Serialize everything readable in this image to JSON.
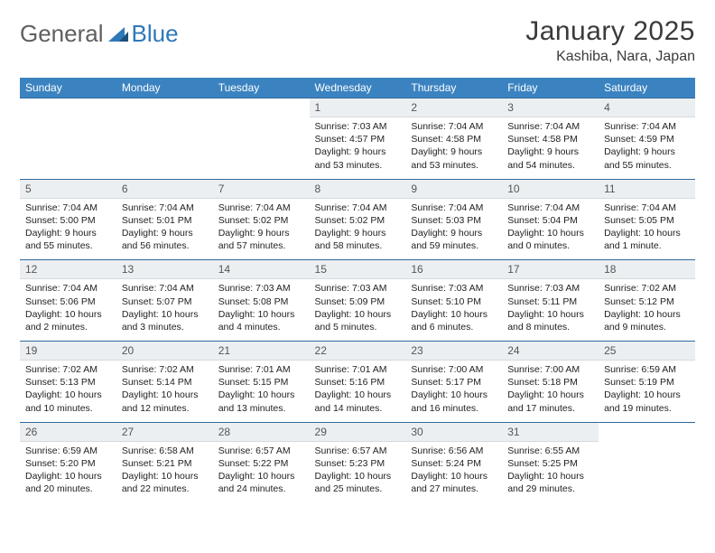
{
  "brand": {
    "part1": "General",
    "part2": "Blue"
  },
  "title": "January 2025",
  "location": "Kashiba, Nara, Japan",
  "colors": {
    "header_bg": "#3b83c0",
    "header_fg": "#ffffff",
    "daynum_bg": "#eceff1",
    "row_border": "#2f6aa0"
  },
  "weekdays": [
    "Sunday",
    "Monday",
    "Tuesday",
    "Wednesday",
    "Thursday",
    "Friday",
    "Saturday"
  ],
  "weeks": [
    [
      {
        "day": "",
        "sunrise": "",
        "sunset": "",
        "daylight": ""
      },
      {
        "day": "",
        "sunrise": "",
        "sunset": "",
        "daylight": ""
      },
      {
        "day": "",
        "sunrise": "",
        "sunset": "",
        "daylight": ""
      },
      {
        "day": "1",
        "sunrise": "Sunrise: 7:03 AM",
        "sunset": "Sunset: 4:57 PM",
        "daylight": "Daylight: 9 hours and 53 minutes."
      },
      {
        "day": "2",
        "sunrise": "Sunrise: 7:04 AM",
        "sunset": "Sunset: 4:58 PM",
        "daylight": "Daylight: 9 hours and 53 minutes."
      },
      {
        "day": "3",
        "sunrise": "Sunrise: 7:04 AM",
        "sunset": "Sunset: 4:58 PM",
        "daylight": "Daylight: 9 hours and 54 minutes."
      },
      {
        "day": "4",
        "sunrise": "Sunrise: 7:04 AM",
        "sunset": "Sunset: 4:59 PM",
        "daylight": "Daylight: 9 hours and 55 minutes."
      }
    ],
    [
      {
        "day": "5",
        "sunrise": "Sunrise: 7:04 AM",
        "sunset": "Sunset: 5:00 PM",
        "daylight": "Daylight: 9 hours and 55 minutes."
      },
      {
        "day": "6",
        "sunrise": "Sunrise: 7:04 AM",
        "sunset": "Sunset: 5:01 PM",
        "daylight": "Daylight: 9 hours and 56 minutes."
      },
      {
        "day": "7",
        "sunrise": "Sunrise: 7:04 AM",
        "sunset": "Sunset: 5:02 PM",
        "daylight": "Daylight: 9 hours and 57 minutes."
      },
      {
        "day": "8",
        "sunrise": "Sunrise: 7:04 AM",
        "sunset": "Sunset: 5:02 PM",
        "daylight": "Daylight: 9 hours and 58 minutes."
      },
      {
        "day": "9",
        "sunrise": "Sunrise: 7:04 AM",
        "sunset": "Sunset: 5:03 PM",
        "daylight": "Daylight: 9 hours and 59 minutes."
      },
      {
        "day": "10",
        "sunrise": "Sunrise: 7:04 AM",
        "sunset": "Sunset: 5:04 PM",
        "daylight": "Daylight: 10 hours and 0 minutes."
      },
      {
        "day": "11",
        "sunrise": "Sunrise: 7:04 AM",
        "sunset": "Sunset: 5:05 PM",
        "daylight": "Daylight: 10 hours and 1 minute."
      }
    ],
    [
      {
        "day": "12",
        "sunrise": "Sunrise: 7:04 AM",
        "sunset": "Sunset: 5:06 PM",
        "daylight": "Daylight: 10 hours and 2 minutes."
      },
      {
        "day": "13",
        "sunrise": "Sunrise: 7:04 AM",
        "sunset": "Sunset: 5:07 PM",
        "daylight": "Daylight: 10 hours and 3 minutes."
      },
      {
        "day": "14",
        "sunrise": "Sunrise: 7:03 AM",
        "sunset": "Sunset: 5:08 PM",
        "daylight": "Daylight: 10 hours and 4 minutes."
      },
      {
        "day": "15",
        "sunrise": "Sunrise: 7:03 AM",
        "sunset": "Sunset: 5:09 PM",
        "daylight": "Daylight: 10 hours and 5 minutes."
      },
      {
        "day": "16",
        "sunrise": "Sunrise: 7:03 AM",
        "sunset": "Sunset: 5:10 PM",
        "daylight": "Daylight: 10 hours and 6 minutes."
      },
      {
        "day": "17",
        "sunrise": "Sunrise: 7:03 AM",
        "sunset": "Sunset: 5:11 PM",
        "daylight": "Daylight: 10 hours and 8 minutes."
      },
      {
        "day": "18",
        "sunrise": "Sunrise: 7:02 AM",
        "sunset": "Sunset: 5:12 PM",
        "daylight": "Daylight: 10 hours and 9 minutes."
      }
    ],
    [
      {
        "day": "19",
        "sunrise": "Sunrise: 7:02 AM",
        "sunset": "Sunset: 5:13 PM",
        "daylight": "Daylight: 10 hours and 10 minutes."
      },
      {
        "day": "20",
        "sunrise": "Sunrise: 7:02 AM",
        "sunset": "Sunset: 5:14 PM",
        "daylight": "Daylight: 10 hours and 12 minutes."
      },
      {
        "day": "21",
        "sunrise": "Sunrise: 7:01 AM",
        "sunset": "Sunset: 5:15 PM",
        "daylight": "Daylight: 10 hours and 13 minutes."
      },
      {
        "day": "22",
        "sunrise": "Sunrise: 7:01 AM",
        "sunset": "Sunset: 5:16 PM",
        "daylight": "Daylight: 10 hours and 14 minutes."
      },
      {
        "day": "23",
        "sunrise": "Sunrise: 7:00 AM",
        "sunset": "Sunset: 5:17 PM",
        "daylight": "Daylight: 10 hours and 16 minutes."
      },
      {
        "day": "24",
        "sunrise": "Sunrise: 7:00 AM",
        "sunset": "Sunset: 5:18 PM",
        "daylight": "Daylight: 10 hours and 17 minutes."
      },
      {
        "day": "25",
        "sunrise": "Sunrise: 6:59 AM",
        "sunset": "Sunset: 5:19 PM",
        "daylight": "Daylight: 10 hours and 19 minutes."
      }
    ],
    [
      {
        "day": "26",
        "sunrise": "Sunrise: 6:59 AM",
        "sunset": "Sunset: 5:20 PM",
        "daylight": "Daylight: 10 hours and 20 minutes."
      },
      {
        "day": "27",
        "sunrise": "Sunrise: 6:58 AM",
        "sunset": "Sunset: 5:21 PM",
        "daylight": "Daylight: 10 hours and 22 minutes."
      },
      {
        "day": "28",
        "sunrise": "Sunrise: 6:57 AM",
        "sunset": "Sunset: 5:22 PM",
        "daylight": "Daylight: 10 hours and 24 minutes."
      },
      {
        "day": "29",
        "sunrise": "Sunrise: 6:57 AM",
        "sunset": "Sunset: 5:23 PM",
        "daylight": "Daylight: 10 hours and 25 minutes."
      },
      {
        "day": "30",
        "sunrise": "Sunrise: 6:56 AM",
        "sunset": "Sunset: 5:24 PM",
        "daylight": "Daylight: 10 hours and 27 minutes."
      },
      {
        "day": "31",
        "sunrise": "Sunrise: 6:55 AM",
        "sunset": "Sunset: 5:25 PM",
        "daylight": "Daylight: 10 hours and 29 minutes."
      },
      {
        "day": "",
        "sunrise": "",
        "sunset": "",
        "daylight": ""
      }
    ]
  ]
}
